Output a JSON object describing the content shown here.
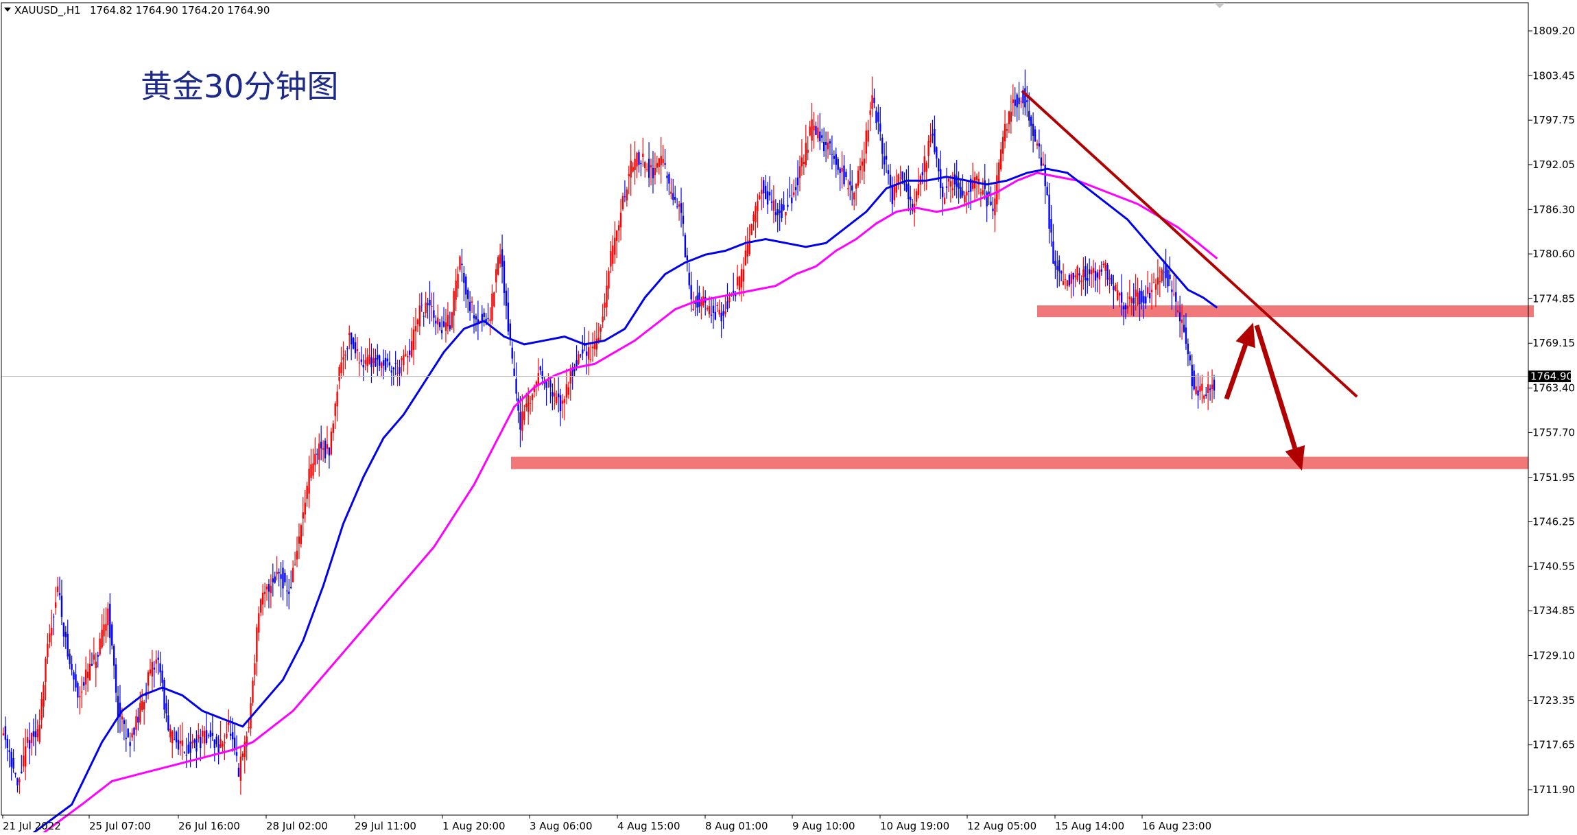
{
  "header": {
    "symbol": "XAUUSD_,H1",
    "ohlc": "1764.82 1764.90 1764.20 1764.90"
  },
  "title": "黄金30分钟图",
  "current_price": "1764.90",
  "colors": {
    "background": "#ffffff",
    "bull_candle": "#ff0000",
    "bear_candle": "#0000ff",
    "ma_fast": "#0000ee",
    "ma_slow": "#ff00ff",
    "trendline": "#b00000",
    "zone": "#f07878",
    "arrow": "#b00000",
    "text": "#000000",
    "title": "#1e2a8a"
  },
  "chart_data": {
    "type": "candlestick",
    "instrument": "XAUUSD",
    "timeframe": "H1",
    "ylim": [
      1708.6,
      1812.0
    ],
    "y_ticks": [
      "1809.20",
      "1803.45",
      "1797.75",
      "1792.05",
      "1786.30",
      "1780.60",
      "1774.85",
      "1769.15",
      "1763.40",
      "1757.70",
      "1751.95",
      "1746.25",
      "1740.55",
      "1734.85",
      "1729.10",
      "1723.35",
      "1717.65",
      "1711.90"
    ],
    "x_ticks": [
      "21 Jul 2022",
      "25 Jul 07:00",
      "26 Jul 16:00",
      "28 Jul 02:00",
      "29 Jul 11:00",
      "1 Aug 20:00",
      "3 Aug 06:00",
      "4 Aug 15:00",
      "8 Aug 01:00",
      "9 Aug 10:00",
      "10 Aug 19:00",
      "12 Aug 05:00",
      "15 Aug 14:00",
      "16 Aug 23:00"
    ],
    "price_path": [
      [
        0,
        1720
      ],
      [
        8,
        1717
      ],
      [
        16,
        1712
      ],
      [
        26,
        1718
      ],
      [
        36,
        1719
      ],
      [
        46,
        1730
      ],
      [
        56,
        1738
      ],
      [
        66,
        1729
      ],
      [
        76,
        1724
      ],
      [
        86,
        1727
      ],
      [
        96,
        1729
      ],
      [
        106,
        1735
      ],
      [
        116,
        1722
      ],
      [
        126,
        1718
      ],
      [
        136,
        1721
      ],
      [
        146,
        1726
      ],
      [
        156,
        1729
      ],
      [
        166,
        1719
      ],
      [
        176,
        1718
      ],
      [
        186,
        1717
      ],
      [
        196,
        1718
      ],
      [
        206,
        1719
      ],
      [
        216,
        1717
      ],
      [
        226,
        1720
      ],
      [
        236,
        1714
      ],
      [
        246,
        1720
      ],
      [
        256,
        1735
      ],
      [
        266,
        1738
      ],
      [
        276,
        1740
      ],
      [
        286,
        1737
      ],
      [
        296,
        1744
      ],
      [
        306,
        1752
      ],
      [
        316,
        1756
      ],
      [
        326,
        1755
      ],
      [
        336,
        1766
      ],
      [
        346,
        1770
      ],
      [
        356,
        1767
      ],
      [
        366,
        1767
      ],
      [
        376,
        1767
      ],
      [
        386,
        1766
      ],
      [
        396,
        1766
      ],
      [
        406,
        1768
      ],
      [
        416,
        1773
      ],
      [
        426,
        1774
      ],
      [
        436,
        1771
      ],
      [
        446,
        1772
      ],
      [
        456,
        1780
      ],
      [
        466,
        1774
      ],
      [
        476,
        1772
      ],
      [
        486,
        1773
      ],
      [
        496,
        1781
      ],
      [
        506,
        1769
      ],
      [
        516,
        1759
      ],
      [
        526,
        1762
      ],
      [
        536,
        1766
      ],
      [
        546,
        1763
      ],
      [
        556,
        1761
      ],
      [
        566,
        1765
      ],
      [
        576,
        1768
      ],
      [
        586,
        1768
      ],
      [
        596,
        1771
      ],
      [
        606,
        1780
      ],
      [
        616,
        1786
      ],
      [
        626,
        1792
      ],
      [
        636,
        1793
      ],
      [
        646,
        1791
      ],
      [
        656,
        1793
      ],
      [
        666,
        1788
      ],
      [
        676,
        1786
      ],
      [
        686,
        1774
      ],
      [
        696,
        1775
      ],
      [
        706,
        1773
      ],
      [
        716,
        1773
      ],
      [
        726,
        1775
      ],
      [
        736,
        1778
      ],
      [
        746,
        1784
      ],
      [
        756,
        1789
      ],
      [
        766,
        1787
      ],
      [
        776,
        1786
      ],
      [
        786,
        1788
      ],
      [
        796,
        1792
      ],
      [
        806,
        1797
      ],
      [
        816,
        1795
      ],
      [
        826,
        1794
      ],
      [
        836,
        1791
      ],
      [
        846,
        1788
      ],
      [
        856,
        1792
      ],
      [
        866,
        1801
      ],
      [
        876,
        1794
      ],
      [
        886,
        1788
      ],
      [
        896,
        1791
      ],
      [
        906,
        1787
      ],
      [
        916,
        1791
      ],
      [
        926,
        1796
      ],
      [
        936,
        1788
      ],
      [
        946,
        1790
      ],
      [
        956,
        1788
      ],
      [
        966,
        1790
      ],
      [
        976,
        1789
      ],
      [
        986,
        1786
      ],
      [
        996,
        1796
      ],
      [
        1006,
        1800
      ],
      [
        1016,
        1801
      ],
      [
        1026,
        1796
      ],
      [
        1036,
        1792
      ],
      [
        1046,
        1780
      ],
      [
        1056,
        1777
      ],
      [
        1066,
        1778
      ],
      [
        1076,
        1778
      ],
      [
        1086,
        1778
      ],
      [
        1096,
        1779
      ],
      [
        1106,
        1776
      ],
      [
        1116,
        1774
      ],
      [
        1126,
        1775
      ],
      [
        1136,
        1775
      ],
      [
        1146,
        1776
      ],
      [
        1156,
        1779
      ],
      [
        1166,
        1775
      ],
      [
        1176,
        1771
      ],
      [
        1186,
        1763
      ],
      [
        1196,
        1763
      ],
      [
        1206,
        1764
      ]
    ],
    "ma_fast": [
      [
        28,
        1706
      ],
      [
        70,
        1710
      ],
      [
        100,
        1718
      ],
      [
        120,
        1722
      ],
      [
        140,
        1724
      ],
      [
        160,
        1725
      ],
      [
        180,
        1724
      ],
      [
        200,
        1722
      ],
      [
        220,
        1721
      ],
      [
        240,
        1720
      ],
      [
        260,
        1723
      ],
      [
        280,
        1726
      ],
      [
        300,
        1731
      ],
      [
        320,
        1738
      ],
      [
        340,
        1746
      ],
      [
        360,
        1752
      ],
      [
        380,
        1757
      ],
      [
        400,
        1760
      ],
      [
        420,
        1764
      ],
      [
        440,
        1768
      ],
      [
        460,
        1771
      ],
      [
        480,
        1772
      ],
      [
        500,
        1770
      ],
      [
        520,
        1769
      ],
      [
        540,
        1769.5
      ],
      [
        560,
        1770
      ],
      [
        580,
        1769
      ],
      [
        600,
        1769.5
      ],
      [
        620,
        1771
      ],
      [
        640,
        1775
      ],
      [
        660,
        1778
      ],
      [
        680,
        1779.5
      ],
      [
        700,
        1780.5
      ],
      [
        720,
        1781
      ],
      [
        740,
        1782
      ],
      [
        760,
        1782.5
      ],
      [
        780,
        1782
      ],
      [
        800,
        1781.5
      ],
      [
        820,
        1782
      ],
      [
        840,
        1784
      ],
      [
        860,
        1786
      ],
      [
        880,
        1789
      ],
      [
        900,
        1790
      ],
      [
        920,
        1790
      ],
      [
        940,
        1790.5
      ],
      [
        960,
        1790
      ],
      [
        980,
        1789.5
      ],
      [
        1000,
        1790
      ],
      [
        1020,
        1791
      ],
      [
        1040,
        1791.5
      ],
      [
        1060,
        1791
      ],
      [
        1080,
        1789
      ],
      [
        1100,
        1787
      ],
      [
        1120,
        1785
      ],
      [
        1140,
        1782
      ],
      [
        1160,
        1779
      ],
      [
        1180,
        1776
      ],
      [
        1195,
        1775
      ],
      [
        1209,
        1773.7
      ]
    ],
    "ma_slow": [
      [
        38,
        1706
      ],
      [
        80,
        1710
      ],
      [
        110,
        1713
      ],
      [
        140,
        1714
      ],
      [
        170,
        1715
      ],
      [
        200,
        1716
      ],
      [
        230,
        1717
      ],
      [
        250,
        1718
      ],
      [
        270,
        1720
      ],
      [
        290,
        1722
      ],
      [
        310,
        1725
      ],
      [
        330,
        1728
      ],
      [
        350,
        1731
      ],
      [
        370,
        1734
      ],
      [
        390,
        1737
      ],
      [
        410,
        1740
      ],
      [
        430,
        1743
      ],
      [
        450,
        1747
      ],
      [
        470,
        1751
      ],
      [
        490,
        1756
      ],
      [
        510,
        1761
      ],
      [
        530,
        1763.5
      ],
      [
        550,
        1765
      ],
      [
        570,
        1766
      ],
      [
        590,
        1766.5
      ],
      [
        610,
        1768
      ],
      [
        630,
        1769.5
      ],
      [
        650,
        1771.5
      ],
      [
        670,
        1773.5
      ],
      [
        690,
        1774.5
      ],
      [
        710,
        1775
      ],
      [
        730,
        1775.5
      ],
      [
        750,
        1776
      ],
      [
        770,
        1776.5
      ],
      [
        790,
        1778
      ],
      [
        810,
        1779
      ],
      [
        830,
        1781
      ],
      [
        850,
        1782.5
      ],
      [
        870,
        1784.5
      ],
      [
        890,
        1786
      ],
      [
        910,
        1786.5
      ],
      [
        930,
        1786
      ],
      [
        950,
        1786.5
      ],
      [
        970,
        1787.5
      ],
      [
        990,
        1788.5
      ],
      [
        1010,
        1790
      ],
      [
        1030,
        1791
      ],
      [
        1050,
        1790.5
      ],
      [
        1070,
        1790
      ],
      [
        1090,
        1789
      ],
      [
        1110,
        1788
      ],
      [
        1130,
        1787
      ],
      [
        1150,
        1785.5
      ],
      [
        1170,
        1784
      ],
      [
        1190,
        1782
      ],
      [
        1209,
        1780
      ]
    ],
    "resistance_zone": [
      1772.5,
      1774.0
    ],
    "support_zone": [
      1753.0,
      1754.6
    ],
    "trendline": {
      "from": [
        1015,
        1801.5
      ],
      "to": [
        1348,
        1762.3
      ]
    },
    "projection": {
      "up_from": 1762.0,
      "up_to": 1772.5,
      "down_to": 1753.0
    },
    "note": "x values in price_path / ma series are the plotted position index (pixel column) of the source chart; y values are prices."
  }
}
